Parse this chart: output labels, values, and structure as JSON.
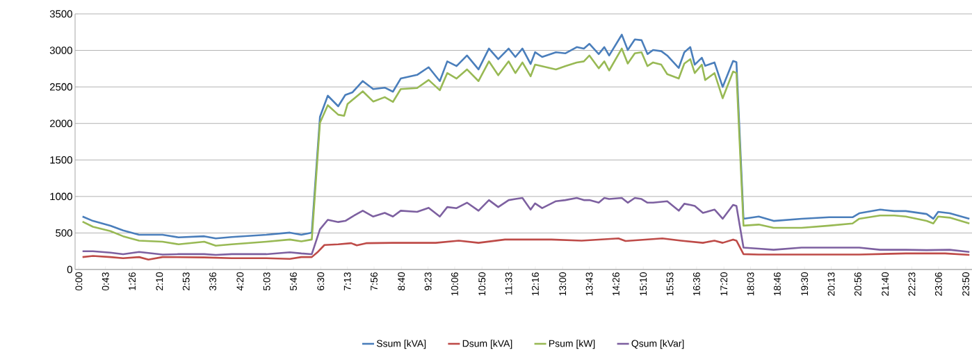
{
  "chart_data": {
    "type": "line",
    "xlim": [
      -0.1,
      24
    ],
    "ylim": [
      0,
      3500
    ],
    "yticks": [
      0,
      500,
      1000,
      1500,
      2000,
      2500,
      3000,
      3500
    ],
    "xticks": [
      {
        "value": 0,
        "label": "0:00"
      },
      {
        "value": 0.7167,
        "label": "0:43"
      },
      {
        "value": 1.4333,
        "label": "1:26"
      },
      {
        "value": 2.1667,
        "label": "2:10"
      },
      {
        "value": 2.8833,
        "label": "2:53"
      },
      {
        "value": 3.6,
        "label": "3:36"
      },
      {
        "value": 4.3333,
        "label": "4:20"
      },
      {
        "value": 5.05,
        "label": "5:03"
      },
      {
        "value": 5.7667,
        "label": "5:46"
      },
      {
        "value": 6.5,
        "label": "6:30"
      },
      {
        "value": 7.2167,
        "label": "7:13"
      },
      {
        "value": 7.9333,
        "label": "7:56"
      },
      {
        "value": 8.6667,
        "label": "8:40"
      },
      {
        "value": 9.3833,
        "label": "9:23"
      },
      {
        "value": 10.1,
        "label": "10:06"
      },
      {
        "value": 10.8333,
        "label": "10:50"
      },
      {
        "value": 11.55,
        "label": "11:33"
      },
      {
        "value": 12.2667,
        "label": "12:16"
      },
      {
        "value": 13,
        "label": "13:00"
      },
      {
        "value": 13.7167,
        "label": "13:43"
      },
      {
        "value": 14.4333,
        "label": "14:26"
      },
      {
        "value": 15.1667,
        "label": "15:10"
      },
      {
        "value": 15.8833,
        "label": "15:53"
      },
      {
        "value": 16.6,
        "label": "16:36"
      },
      {
        "value": 17.3333,
        "label": "17:20"
      },
      {
        "value": 18.05,
        "label": "18:03"
      },
      {
        "value": 18.7667,
        "label": "18:46"
      },
      {
        "value": 19.5,
        "label": "19:30"
      },
      {
        "value": 20.2167,
        "label": "20:13"
      },
      {
        "value": 20.9333,
        "label": "20:56"
      },
      {
        "value": 21.6667,
        "label": "21:40"
      },
      {
        "value": 22.3833,
        "label": "22:23"
      },
      {
        "value": 23.1,
        "label": "23:06"
      },
      {
        "value": 23.8333,
        "label": "23:50"
      }
    ],
    "grid": "y",
    "legend": "bottom",
    "marker": "none",
    "line_style": "solid",
    "series": [
      {
        "name": "Ssum [kVA]",
        "color": "#4a7ebb",
        "x": [
          0.1,
          0.38,
          0.85,
          1.19,
          1.62,
          2.25,
          2.68,
          3.37,
          3.68,
          4.11,
          5.04,
          5.67,
          5.98,
          6.26,
          6.48,
          6.69,
          6.97,
          7.16,
          7.35,
          7.63,
          7.91,
          8.22,
          8.44,
          8.65,
          9.09,
          9.4,
          9.7,
          9.9,
          10.15,
          10.43,
          10.74,
          11.02,
          11.27,
          11.55,
          11.73,
          11.92,
          12.14,
          12.26,
          12.45,
          12.82,
          13.07,
          13.38,
          13.57,
          13.72,
          13.97,
          14.12,
          14.25,
          14.59,
          14.75,
          14.94,
          15.12,
          15.28,
          15.43,
          15.65,
          15.81,
          16.12,
          16.27,
          16.43,
          16.55,
          16.74,
          16.83,
          17.08,
          17.3,
          17.58,
          17.67,
          17.86,
          18.27,
          18.67,
          19.42,
          20.16,
          20.79,
          20.97,
          21.53,
          21.91,
          22.22,
          22.78,
          22.96,
          23.09,
          23.4,
          23.93
        ],
        "values": [
          725,
          665,
          600,
          535,
          475,
          475,
          440,
          455,
          425,
          445,
          475,
          505,
          475,
          505,
          2090,
          2380,
          2235,
          2390,
          2425,
          2580,
          2470,
          2490,
          2435,
          2615,
          2665,
          2770,
          2580,
          2850,
          2785,
          2930,
          2740,
          3025,
          2880,
          3025,
          2910,
          3025,
          2815,
          2975,
          2910,
          2975,
          2960,
          3045,
          3025,
          3090,
          2950,
          3045,
          2930,
          3215,
          3005,
          3150,
          3140,
          2950,
          3005,
          2990,
          2930,
          2760,
          2975,
          3045,
          2805,
          2900,
          2790,
          2835,
          2500,
          2855,
          2840,
          695,
          725,
          665,
          695,
          715,
          715,
          770,
          820,
          800,
          800,
          760,
          695,
          790,
          770,
          695
        ]
      },
      {
        "name": "Dsum [kVA]",
        "color": "#be4b48",
        "x": [
          0.1,
          0.38,
          0.85,
          1.19,
          1.62,
          1.87,
          2.25,
          3.37,
          4.11,
          5.04,
          5.67,
          5.98,
          6.26,
          6.41,
          6.6,
          6.97,
          7.32,
          7.47,
          7.72,
          8.44,
          8.65,
          9.59,
          10.21,
          10.74,
          11.45,
          12.7,
          13.51,
          14.5,
          14.69,
          15.68,
          16.18,
          16.77,
          17.08,
          17.3,
          17.58,
          17.67,
          17.86,
          18.27,
          19.42,
          20.97,
          22.22,
          23.28,
          23.93
        ],
        "values": [
          170,
          185,
          170,
          155,
          170,
          135,
          170,
          165,
          155,
          155,
          145,
          170,
          170,
          235,
          335,
          345,
          360,
          330,
          360,
          365,
          365,
          365,
          395,
          365,
          410,
          410,
          395,
          425,
          390,
          425,
          395,
          365,
          395,
          365,
          410,
          395,
          210,
          205,
          205,
          205,
          220,
          220,
          200
        ]
      },
      {
        "name": "Psum [kW]",
        "color": "#98b954",
        "x": [
          0.1,
          0.38,
          0.85,
          1.19,
          1.62,
          2.25,
          2.68,
          3.37,
          3.68,
          4.11,
          5.04,
          5.67,
          5.98,
          6.26,
          6.48,
          6.69,
          6.97,
          7.13,
          7.22,
          7.63,
          7.91,
          8.22,
          8.44,
          8.65,
          9.09,
          9.4,
          9.7,
          9.9,
          10.15,
          10.43,
          10.74,
          11.02,
          11.27,
          11.55,
          11.73,
          11.92,
          12.14,
          12.26,
          12.82,
          13.07,
          13.38,
          13.57,
          13.72,
          13.97,
          14.12,
          14.25,
          14.59,
          14.75,
          14.94,
          15.12,
          15.28,
          15.43,
          15.65,
          15.81,
          16.12,
          16.27,
          16.43,
          16.55,
          16.74,
          16.83,
          17.08,
          17.3,
          17.58,
          17.67,
          17.86,
          18.27,
          18.67,
          19.42,
          20.16,
          20.79,
          20.97,
          21.53,
          21.91,
          22.22,
          22.78,
          22.96,
          23.09,
          23.4,
          23.93
        ],
        "values": [
          655,
          585,
          525,
          455,
          395,
          380,
          345,
          380,
          325,
          345,
          380,
          410,
          385,
          410,
          2010,
          2250,
          2120,
          2105,
          2265,
          2440,
          2300,
          2360,
          2295,
          2470,
          2485,
          2595,
          2455,
          2690,
          2615,
          2740,
          2580,
          2850,
          2660,
          2850,
          2690,
          2835,
          2645,
          2805,
          2740,
          2785,
          2835,
          2850,
          2930,
          2755,
          2850,
          2725,
          3025,
          2820,
          2960,
          2975,
          2785,
          2835,
          2805,
          2675,
          2615,
          2820,
          2880,
          2690,
          2805,
          2595,
          2690,
          2345,
          2710,
          2690,
          600,
          615,
          570,
          570,
          600,
          630,
          695,
          740,
          740,
          725,
          665,
          630,
          725,
          710,
          630
        ]
      },
      {
        "name": "Qsum [kVar]",
        "color": "#7d60a0",
        "x": [
          0.1,
          0.38,
          0.85,
          1.19,
          1.62,
          2.25,
          2.68,
          3.37,
          3.68,
          4.11,
          5.04,
          5.67,
          5.98,
          6.26,
          6.48,
          6.69,
          6.97,
          7.16,
          7.35,
          7.63,
          7.91,
          8.22,
          8.44,
          8.65,
          9.09,
          9.4,
          9.7,
          9.9,
          10.15,
          10.43,
          10.74,
          11.02,
          11.27,
          11.55,
          11.73,
          11.92,
          12.14,
          12.26,
          12.45,
          12.82,
          13.07,
          13.38,
          13.57,
          13.72,
          13.97,
          14.12,
          14.25,
          14.59,
          14.75,
          14.94,
          15.12,
          15.28,
          15.43,
          15.81,
          16.12,
          16.27,
          16.43,
          16.55,
          16.77,
          17.08,
          17.11,
          17.3,
          17.58,
          17.67,
          17.86,
          18.27,
          18.67,
          19.42,
          20.16,
          20.97,
          21.53,
          22.22,
          22.78,
          23.4,
          23.93
        ],
        "values": [
          250,
          250,
          230,
          210,
          240,
          205,
          210,
          210,
          200,
          210,
          210,
          235,
          220,
          210,
          550,
          680,
          650,
          665,
          725,
          805,
          725,
          775,
          725,
          805,
          790,
          845,
          725,
          855,
          840,
          915,
          805,
          950,
          855,
          950,
          965,
          980,
          820,
          905,
          840,
          935,
          950,
          980,
          950,
          950,
          915,
          980,
          965,
          980,
          915,
          980,
          965,
          915,
          915,
          935,
          805,
          900,
          885,
          870,
          775,
          820,
          805,
          695,
          885,
          870,
          300,
          285,
          270,
          300,
          300,
          300,
          270,
          270,
          265,
          270,
          240
        ]
      }
    ]
  }
}
